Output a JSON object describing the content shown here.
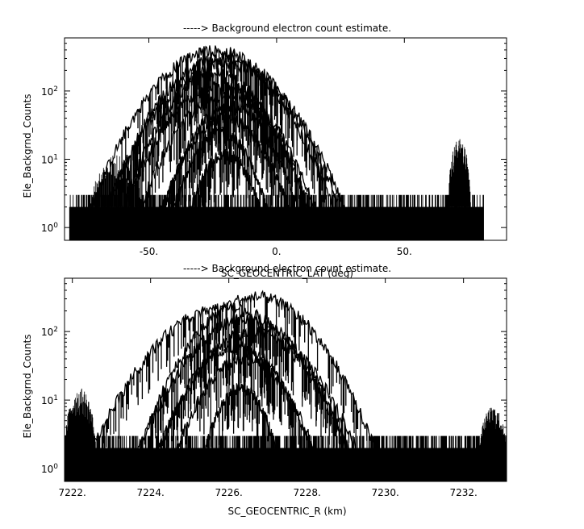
{
  "chart_data": [
    {
      "type": "line",
      "title": "-----> Background electron count estimate.",
      "xlabel": "SC_GEOCENTRIC_LAT (deg)",
      "ylabel": "Ele_Backgrnd_Counts",
      "xlim": [
        -83,
        90
      ],
      "ylim": [
        0.65,
        600
      ],
      "yscale": "log",
      "grid": false,
      "x_ticks": [
        -50,
        0,
        50
      ],
      "x_tick_labels": [
        "-50.",
        "0.",
        "50."
      ],
      "y_ticks": [
        1,
        10,
        100
      ],
      "y_tick_labels": [
        "10^0",
        "10^1",
        "10^2"
      ],
      "data_x_range": [
        -81,
        81
      ],
      "noise_floor": [
        1,
        3
      ],
      "series": [
        {
          "center": -24,
          "peak": 390,
          "sigma": 15
        },
        {
          "center": -22,
          "peak": 300,
          "sigma": 14
        },
        {
          "center": -20,
          "peak": 250,
          "sigma": 15
        },
        {
          "center": -24,
          "peak": 180,
          "sigma": 12
        },
        {
          "center": -22,
          "peak": 120,
          "sigma": 13
        },
        {
          "center": -20,
          "peak": 90,
          "sigma": 12
        },
        {
          "center": -18,
          "peak": 60,
          "sigma": 10
        },
        {
          "center": -20,
          "peak": 40,
          "sigma": 10
        },
        {
          "center": -22,
          "peak": 25,
          "sigma": 8
        },
        {
          "center": -20,
          "peak": 12,
          "sigma": 7
        }
      ],
      "bursts": [
        {
          "x_range": [
            -73,
            -52
          ],
          "level": 12
        },
        {
          "x_range": [
            67,
            76
          ],
          "level": 20
        }
      ]
    },
    {
      "type": "line",
      "title": "-----> Background electron count estimate.",
      "xlabel": "SC_GEOCENTRIC_R (km)",
      "ylabel": "Ele_Backgrnd_Counts",
      "xlim": [
        7221.8,
        7233.1
      ],
      "ylim": [
        0.65,
        600
      ],
      "yscale": "log",
      "grid": false,
      "x_ticks": [
        7222,
        7224,
        7226,
        7228,
        7230,
        7232
      ],
      "x_tick_labels": [
        "7222.",
        "7224.",
        "7226.",
        "7228.",
        "7230.",
        "7232."
      ],
      "y_ticks": [
        1,
        10,
        100
      ],
      "y_tick_labels": [
        "10^0",
        "10^1",
        "10^2"
      ],
      "data_x_range": [
        7221.8,
        7233.1
      ],
      "noise_floor": [
        1,
        3
      ],
      "series": [
        {
          "center": 7226.7,
          "peak": 320,
          "sigma": 0.95
        },
        {
          "center": 7225.9,
          "peak": 220,
          "sigma": 1.1
        },
        {
          "center": 7226.4,
          "peak": 150,
          "sigma": 0.9
        },
        {
          "center": 7226.6,
          "peak": 100,
          "sigma": 0.85
        },
        {
          "center": 7226.2,
          "peak": 60,
          "sigma": 0.75
        },
        {
          "center": 7226.4,
          "peak": 40,
          "sigma": 0.7
        },
        {
          "center": 7226.3,
          "peak": 15,
          "sigma": 0.45
        }
      ],
      "bursts": [
        {
          "x_range": [
            7221.8,
            7222.6
          ],
          "level": 15
        },
        {
          "x_range": [
            7232.4,
            7233.1
          ],
          "level": 8
        }
      ]
    }
  ]
}
